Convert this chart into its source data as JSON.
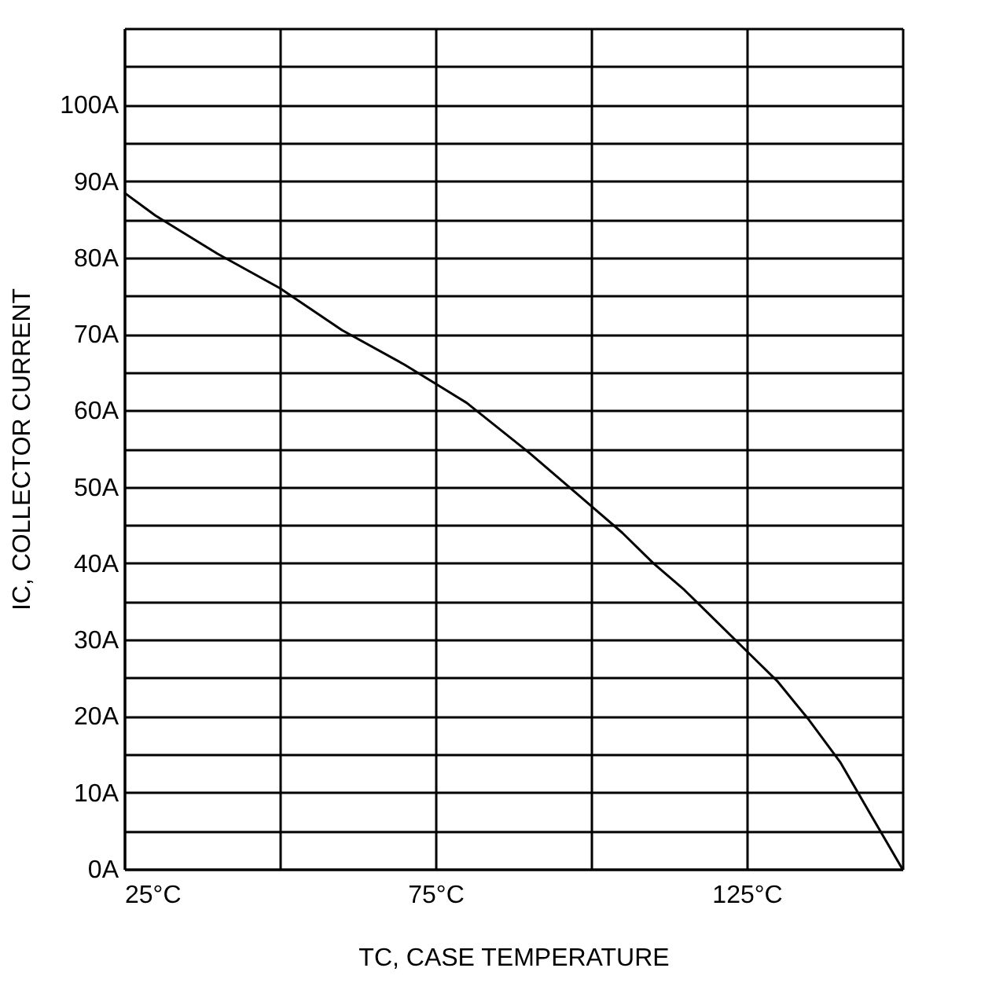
{
  "chart_data": {
    "type": "line",
    "xlabel": "TC, CASE TEMPERATURE",
    "ylabel": "IC, COLLECTOR CURRENT",
    "x": [
      25,
      30,
      40,
      50,
      60,
      70,
      75,
      80,
      90,
      100,
      105,
      110,
      115,
      120,
      125,
      130,
      135,
      140,
      145,
      150
    ],
    "series": [
      {
        "color": "#000000",
        "values": [
          88.5,
          85.5,
          80.5,
          76,
          70.5,
          66,
          63.5,
          61,
          54.5,
          47.5,
          44,
          40,
          36.5,
          32.5,
          28.5,
          24.5,
          19.5,
          14,
          7,
          0
        ]
      }
    ],
    "xlim": [
      25,
      150
    ],
    "xticks": [
      {
        "value": 25,
        "label": "25°C"
      },
      {
        "value": 50,
        "label": null
      },
      {
        "value": 75,
        "label": "75°C"
      },
      {
        "value": 100,
        "label": null
      },
      {
        "value": 125,
        "label": "125°C"
      },
      {
        "value": 150,
        "label": null
      }
    ],
    "ylim": [
      0,
      110
    ],
    "yticks": [
      {
        "value": 0,
        "label": "0A"
      },
      {
        "value": 5,
        "label": null
      },
      {
        "value": 10,
        "label": "10A"
      },
      {
        "value": 15,
        "label": null
      },
      {
        "value": 20,
        "label": "20A"
      },
      {
        "value": 25,
        "label": null
      },
      {
        "value": 30,
        "label": "30A"
      },
      {
        "value": 35,
        "label": null
      },
      {
        "value": 40,
        "label": "40A"
      },
      {
        "value": 45,
        "label": null
      },
      {
        "value": 50,
        "label": "50A"
      },
      {
        "value": 55,
        "label": null
      },
      {
        "value": 60,
        "label": "60A"
      },
      {
        "value": 65,
        "label": null
      },
      {
        "value": 70,
        "label": "70A"
      },
      {
        "value": 75,
        "label": null
      },
      {
        "value": 80,
        "label": "80A"
      },
      {
        "value": 85,
        "label": null
      },
      {
        "value": 90,
        "label": "90A"
      },
      {
        "value": 95,
        "label": null
      },
      {
        "value": 100,
        "label": "100A"
      },
      {
        "value": 105,
        "label": null
      },
      {
        "value": 110,
        "label": null
      }
    ],
    "grid": true,
    "legend": false,
    "marker": "none",
    "line_style": "solid"
  }
}
